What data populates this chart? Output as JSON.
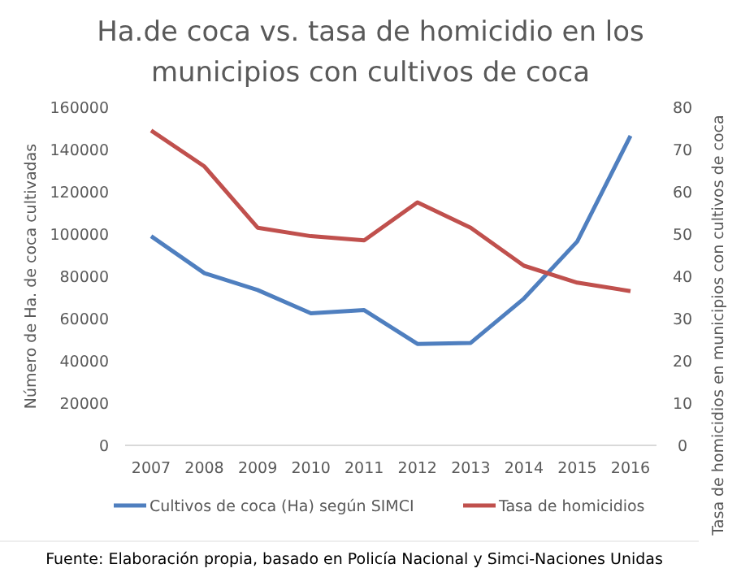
{
  "chart_data": {
    "type": "line",
    "title": "Ha.de coca vs. tasa de homicidio en los municipios con cultivos de coca",
    "ylabel": "Número de Ha. de coca cultivadas",
    "y2label": "Tasa de homicidios en municipios con cultivos de coca",
    "categories": [
      "2007",
      "2008",
      "2009",
      "2010",
      "2011",
      "2012",
      "2013",
      "2014",
      "2015",
      "2016"
    ],
    "series": [
      {
        "name": "Cultivos de coca (Ha) según SIMCI",
        "color": "#4f7fbf",
        "values": [
          99000,
          81500,
          73500,
          62500,
          64000,
          48000,
          48500,
          69500,
          96500,
          146500
        ]
      },
      {
        "name": "Tasa de homicidios",
        "color": "#c0504d",
        "axis": "y2",
        "values": [
          74.5,
          66,
          51.5,
          49.5,
          48.5,
          57.5,
          51.5,
          42.5,
          38.5,
          36.5
        ]
      }
    ],
    "ylim": [
      0,
      160000
    ],
    "yticks": [
      0,
      20000,
      40000,
      60000,
      80000,
      100000,
      120000,
      140000,
      160000
    ],
    "y2lim": [
      0,
      80
    ],
    "y2ticks": [
      0,
      10,
      20,
      30,
      40,
      50,
      60,
      70,
      80
    ],
    "grid": false,
    "legend": "bottom",
    "marker": "none",
    "line_style": "solid",
    "annotations": [
      "Fuente: Elaboración propia, basado en Policía Nacional y Simci-Naciones Unidas"
    ]
  }
}
